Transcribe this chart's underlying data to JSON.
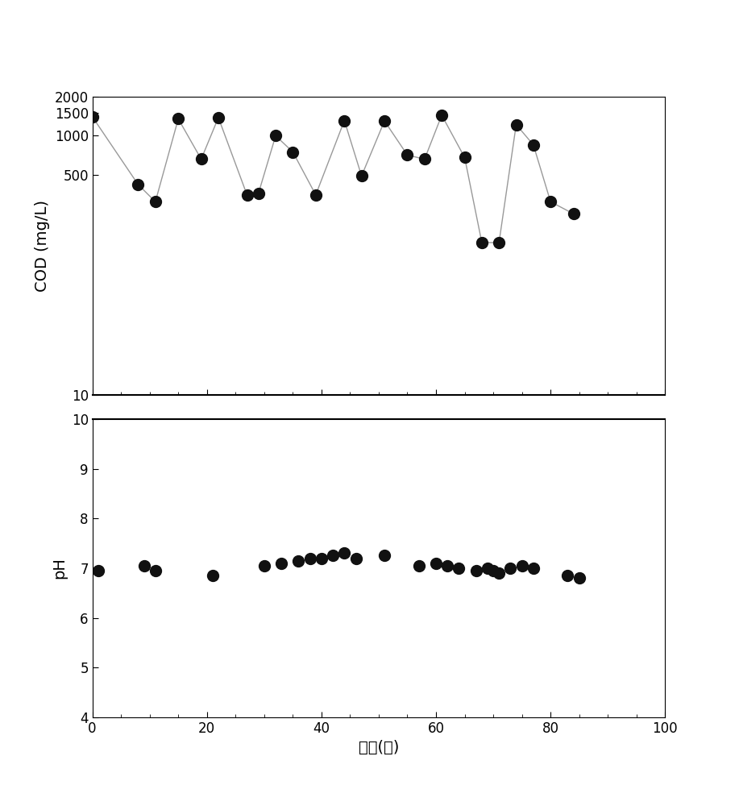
{
  "cod_x": [
    0,
    8,
    11,
    15,
    19,
    22,
    27,
    29,
    32,
    35,
    39,
    44,
    47,
    51,
    55,
    58,
    61,
    65,
    68,
    71,
    74,
    77,
    80,
    84
  ],
  "cod_y": [
    1400,
    420,
    310,
    1350,
    660,
    1380,
    350,
    360,
    1000,
    750,
    350,
    1310,
    490,
    1300,
    710,
    660,
    1440,
    680,
    150,
    150,
    1220,
    850,
    310,
    250
  ],
  "ph_x": [
    1,
    9,
    11,
    21,
    30,
    33,
    36,
    38,
    40,
    42,
    44,
    46,
    51,
    57,
    60,
    62,
    64,
    67,
    69,
    70,
    71,
    73,
    75,
    77,
    83,
    85
  ],
  "ph_y": [
    6.95,
    7.05,
    6.95,
    6.85,
    7.05,
    7.1,
    7.15,
    7.2,
    7.2,
    7.25,
    7.3,
    7.2,
    7.25,
    7.05,
    7.1,
    7.05,
    7.0,
    6.95,
    7.0,
    6.95,
    6.9,
    7.0,
    7.05,
    7.0,
    6.85,
    6.8
  ],
  "cod_ylabel": "COD (mg/L)",
  "ph_ylabel": "pH",
  "xlabel": "时间(天)",
  "xlim": [
    0,
    100
  ],
  "cod_ylim": [
    10,
    2000
  ],
  "cod_yticks": [
    10,
    500,
    1000,
    1500,
    2000
  ],
  "ph_ylim": [
    4,
    10
  ],
  "ph_yticks": [
    4,
    5,
    6,
    7,
    8,
    9,
    10
  ],
  "xticks": [
    0,
    20,
    40,
    60,
    80,
    100
  ],
  "marker_color": "#111111",
  "line_color": "#999999",
  "marker_size": 10,
  "line_width": 1.0,
  "background_color": "#ffffff",
  "fig_background": "#ffffff"
}
